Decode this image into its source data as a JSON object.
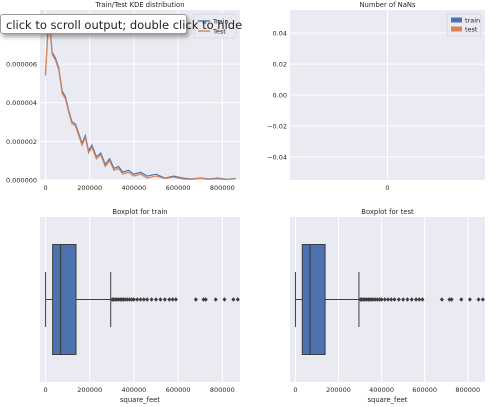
{
  "tooltip": "click to scroll output; double click to hide",
  "colors": {
    "panel_bg": "#eaeaf2",
    "grid": "#ffffff",
    "train": "#4c72b0",
    "test": "#dd8452",
    "box_fill": "#4c72b0",
    "box_line": "#3f3f3f"
  },
  "chart_data": [
    {
      "type": "line",
      "title": "Train/Test KDE distribution",
      "xlabel": "",
      "ylabel": "",
      "xlim": [
        -25000,
        880000
      ],
      "ylim": [
        0,
        8.8e-06
      ],
      "xticks": [
        0,
        200000,
        400000,
        600000,
        800000
      ],
      "xtick_labels": [
        "0",
        "200000",
        "400000",
        "600000",
        "800000"
      ],
      "yticks": [
        0,
        2e-06,
        4e-06,
        6e-06,
        8e-06
      ],
      "ytick_labels": [
        "0.000000",
        "0.000002",
        "0.000004",
        "0.000006",
        "0.000008"
      ],
      "legend": "top-right",
      "grid": true,
      "x": [
        0,
        15000,
        30000,
        45000,
        60000,
        75000,
        90000,
        105000,
        120000,
        135000,
        150000,
        165000,
        180000,
        195000,
        210000,
        230000,
        250000,
        270000,
        290000,
        310000,
        330000,
        350000,
        375000,
        400000,
        430000,
        460000,
        500000,
        540000,
        580000,
        620000,
        660000,
        700000,
        740000,
        780000,
        820000,
        860000
      ],
      "series": [
        {
          "name": "Train",
          "values": [
            5.5e-06,
            8.6e-06,
            6.6e-06,
            6.3e-06,
            5.8e-06,
            4.6e-06,
            4.3e-06,
            3.6e-06,
            3e-06,
            2.9e-06,
            2.4e-06,
            1.9e-06,
            2.3e-06,
            1.5e-06,
            1.8e-06,
            1.2e-06,
            1.4e-06,
            8e-07,
            1.1e-06,
            6e-07,
            7e-07,
            4e-07,
            5e-07,
            3e-07,
            4e-07,
            2e-07,
            3e-07,
            1e-07,
            2e-07,
            1e-07,
            5e-08,
            1e-07,
            5e-08,
            1e-07,
            3e-08,
            8e-08
          ]
        },
        {
          "name": "Test",
          "values": [
            5.4e-06,
            8.5e-06,
            6.5e-06,
            6.2e-06,
            5.7e-06,
            4.5e-06,
            4.2e-06,
            3.5e-06,
            2.9e-06,
            2.8e-06,
            2.3e-06,
            1.8e-06,
            2.2e-06,
            1.4e-06,
            1.7e-06,
            1.1e-06,
            1.3e-06,
            7e-07,
            1e-06,
            5e-07,
            6e-07,
            3e-07,
            4e-07,
            2e-07,
            3e-07,
            1e-07,
            2e-07,
            8e-08,
            1.5e-07,
            5e-08,
            3e-08,
            8e-08,
            3e-08,
            6e-08,
            2e-08,
            6e-08
          ]
        }
      ]
    },
    {
      "type": "bar",
      "title": "Number of NaNs",
      "xlabel": "",
      "ylabel": "",
      "categories": [
        "0"
      ],
      "ylim": [
        -0.055,
        0.055
      ],
      "yticks": [
        -0.04,
        -0.02,
        0.0,
        0.02,
        0.04
      ],
      "ytick_labels": [
        "−0.04",
        "−0.02",
        "0.00",
        "0.02",
        "0.04"
      ],
      "legend": "top-right",
      "grid": true,
      "series": [
        {
          "name": "train",
          "values": [
            0
          ]
        },
        {
          "name": "test",
          "values": [
            0
          ]
        }
      ]
    },
    {
      "type": "box",
      "title": "Boxplot for train",
      "xlabel": "square_feet",
      "xlim": [
        -25000,
        880000
      ],
      "xticks": [
        0,
        200000,
        400000,
        600000,
        800000
      ],
      "xtick_labels": [
        "0",
        "200000",
        "400000",
        "600000",
        "800000"
      ],
      "grid": true,
      "whisker_low": 283,
      "q1": 32000,
      "median": 68000,
      "q3": 138000,
      "whisker_high": 295000,
      "outliers": [
        302000,
        308000,
        315000,
        322000,
        330000,
        338000,
        345000,
        352000,
        360000,
        370000,
        380000,
        390000,
        400000,
        415000,
        430000,
        445000,
        460000,
        480000,
        500000,
        520000,
        540000,
        560000,
        575000,
        590000,
        680000,
        715000,
        725000,
        770000,
        810000,
        850000,
        870000
      ]
    },
    {
      "type": "box",
      "title": "Boxplot for test",
      "xlabel": "square_feet",
      "xlim": [
        -25000,
        880000
      ],
      "xticks": [
        0,
        200000,
        400000,
        600000,
        800000
      ],
      "xtick_labels": [
        "0",
        "200000",
        "400000",
        "600000",
        "800000"
      ],
      "grid": true,
      "whisker_low": 283,
      "q1": 32000,
      "median": 68000,
      "q3": 138000,
      "whisker_high": 295000,
      "outliers": [
        302000,
        308000,
        315000,
        322000,
        330000,
        338000,
        345000,
        352000,
        360000,
        370000,
        380000,
        390000,
        400000,
        415000,
        430000,
        445000,
        460000,
        480000,
        500000,
        520000,
        540000,
        560000,
        575000,
        590000,
        680000,
        715000,
        725000,
        770000,
        810000,
        850000,
        870000
      ]
    }
  ]
}
